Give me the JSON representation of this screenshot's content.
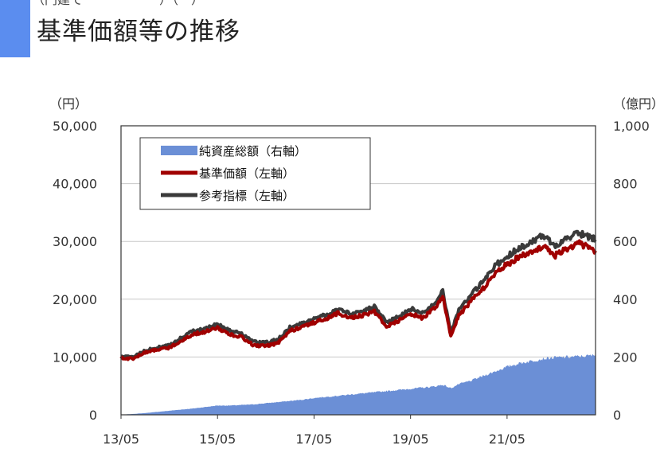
{
  "header": {
    "title": "基準価額等の推移",
    "top_fragment": "（円建て　　　　　　）（　）"
  },
  "colors": {
    "accent": "#5b8def",
    "net_assets": "#6b8fd6",
    "nav": "#a00000",
    "benchmark": "#3a3a3a"
  },
  "chart_data": {
    "type": "line",
    "title": "基準価額等の推移",
    "left_axis": {
      "unit_label": "（円）",
      "ylim": [
        0,
        50000
      ],
      "ticks": [
        "0",
        "10,000",
        "20,000",
        "30,000",
        "40,000",
        "50,000"
      ],
      "tick_values": [
        0,
        10000,
        20000,
        30000,
        40000,
        50000
      ]
    },
    "right_axis": {
      "unit_label": "（億円）",
      "ylim": [
        0,
        1000
      ],
      "ticks": [
        "0",
        "200",
        "400",
        "600",
        "800",
        "1,000"
      ],
      "tick_values": [
        0,
        200,
        400,
        600,
        800,
        1000
      ]
    },
    "x_axis": {
      "range": [
        "2013-05",
        "2023-03"
      ],
      "ticks": [
        "13/05",
        "15/05",
        "17/05",
        "19/05",
        "21/05"
      ]
    },
    "grid": true,
    "legend_position": "top-left",
    "x": [
      "2013-05",
      "2013-08",
      "2013-11",
      "2014-02",
      "2014-05",
      "2014-08",
      "2014-11",
      "2015-02",
      "2015-05",
      "2015-08",
      "2015-11",
      "2016-02",
      "2016-05",
      "2016-08",
      "2016-11",
      "2017-02",
      "2017-05",
      "2017-08",
      "2017-11",
      "2018-02",
      "2018-05",
      "2018-08",
      "2018-11",
      "2019-02",
      "2019-05",
      "2019-08",
      "2019-11",
      "2020-01",
      "2020-03",
      "2020-05",
      "2020-08",
      "2020-11",
      "2021-02",
      "2021-05",
      "2021-08",
      "2021-11",
      "2022-02",
      "2022-05",
      "2022-08",
      "2022-11",
      "2023-03"
    ],
    "series": [
      {
        "name": "純資産総額（右軸）",
        "axis": "right",
        "style": "area",
        "values": [
          0,
          3,
          6,
          10,
          14,
          18,
          22,
          27,
          32,
          32,
          34,
          36,
          40,
          44,
          48,
          52,
          58,
          62,
          66,
          70,
          74,
          78,
          82,
          86,
          90,
          94,
          98,
          104,
          92,
          106,
          118,
          134,
          150,
          166,
          178,
          186,
          194,
          198,
          200,
          202,
          206
        ]
      },
      {
        "name": "基準価額（左軸）",
        "axis": "left",
        "style": "line",
        "values": [
          9800,
          9700,
          10800,
          11300,
          11600,
          12800,
          14000,
          14400,
          15000,
          14000,
          13400,
          12000,
          11900,
          12400,
          14500,
          15200,
          16000,
          16600,
          17600,
          16800,
          17200,
          17900,
          15300,
          16200,
          17500,
          16700,
          18400,
          20500,
          13600,
          17200,
          19600,
          21800,
          24500,
          26000,
          27300,
          28200,
          29200,
          27600,
          28800,
          29600,
          28400
        ]
      },
      {
        "name": "参考指標（左軸）",
        "axis": "left",
        "style": "line",
        "values": [
          10100,
          10000,
          11100,
          11600,
          12000,
          13300,
          14600,
          15000,
          15600,
          14600,
          14000,
          12600,
          12500,
          13000,
          15100,
          15800,
          16600,
          17300,
          18300,
          17500,
          17900,
          18700,
          16000,
          17000,
          18400,
          17600,
          19400,
          21500,
          14300,
          18100,
          20700,
          23000,
          25800,
          27400,
          28800,
          29900,
          31000,
          29300,
          30600,
          31400,
          30300
        ]
      }
    ]
  }
}
